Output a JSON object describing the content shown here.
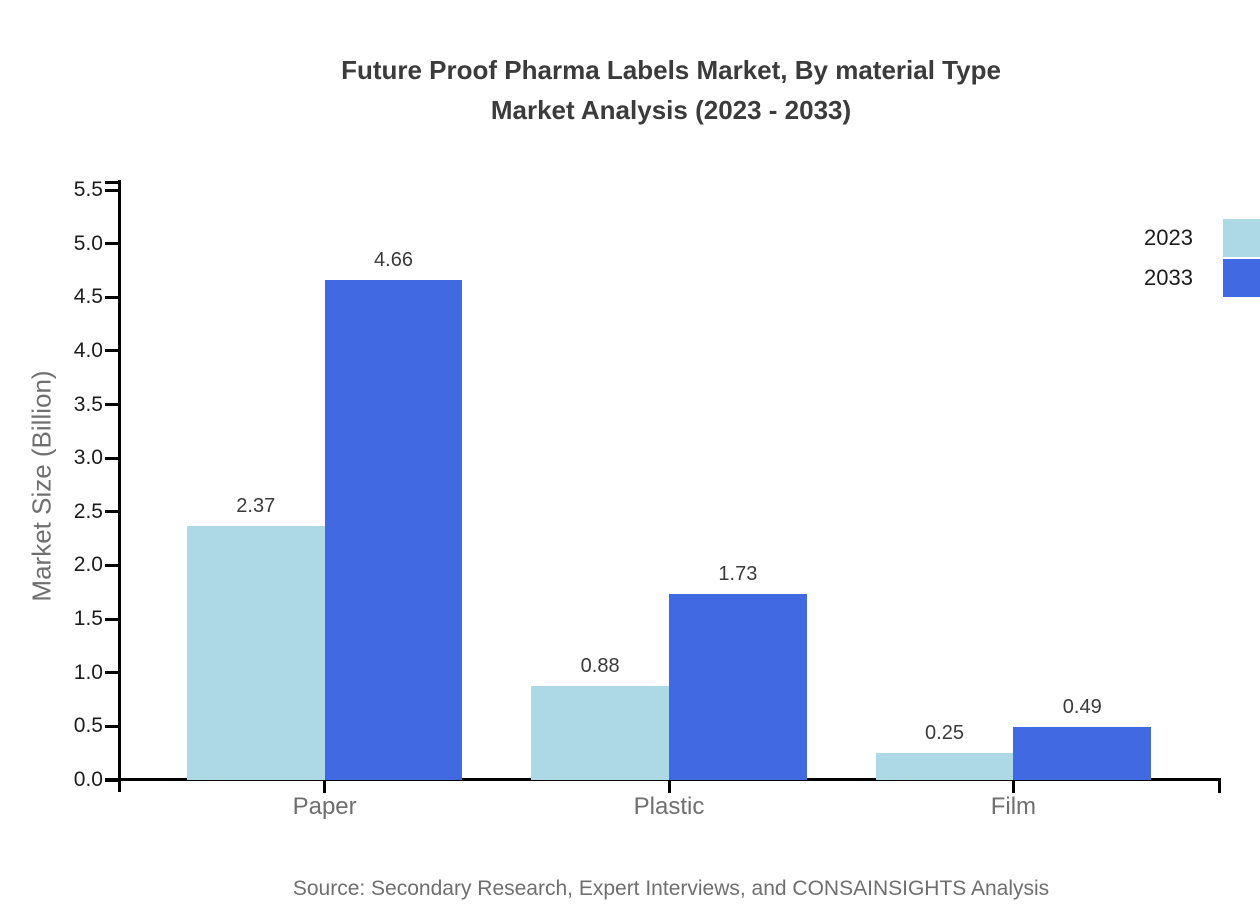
{
  "title": {
    "line1": "Future Proof Pharma Labels Market, By material Type",
    "line2": "Market Analysis (2023 - 2033)"
  },
  "chart_data": {
    "type": "bar",
    "title": "Future Proof Pharma Labels Market, By material Type Market Analysis (2023 - 2033)",
    "categories": [
      "Paper",
      "Plastic",
      "Film"
    ],
    "series": [
      {
        "name": "2023",
        "color": "#ADD8E6",
        "values": [
          2.37,
          0.88,
          0.25
        ]
      },
      {
        "name": "2033",
        "color": "#4169E1",
        "values": [
          4.66,
          1.73,
          0.49
        ]
      }
    ],
    "xlabel": "",
    "ylabel": "Market Size (Billion)",
    "ylim": [
      0,
      5.5
    ],
    "ytick_step": 0.5,
    "ytick_labels": [
      "0.0",
      "0.5",
      "1.0",
      "1.5",
      "2.0",
      "2.5",
      "3.0",
      "3.5",
      "4.0",
      "4.5",
      "5.0",
      "5.5"
    ],
    "value_labels": true,
    "value_label_format": "2dp",
    "grid": false,
    "legend_position": "top-right"
  },
  "legend": {
    "entries": [
      {
        "label": "2023",
        "color": "#ADD8E6"
      },
      {
        "label": "2033",
        "color": "#4169E1"
      }
    ]
  },
  "source": "Source: Secondary Research, Expert Interviews, and CONSAINSIGHTS Analysis"
}
